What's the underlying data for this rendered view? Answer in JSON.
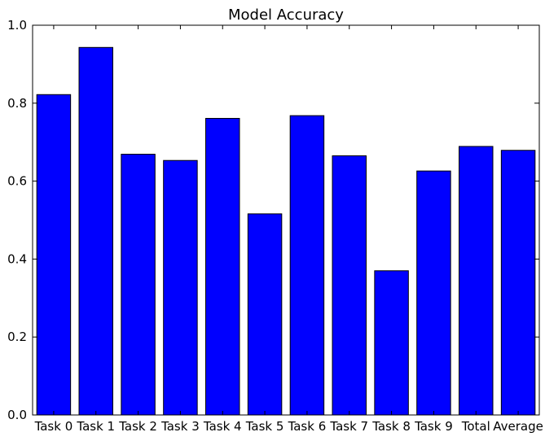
{
  "chart_data": {
    "type": "bar",
    "title": "Model Accuracy",
    "xlabel": "",
    "ylabel": "",
    "categories": [
      "Task 0",
      "Task 1",
      "Task 2",
      "Task 3",
      "Task 4",
      "Task 5",
      "Task 6",
      "Task 7",
      "Task 8",
      "Task 9",
      "Total",
      "Average"
    ],
    "values": [
      0.822,
      0.943,
      0.669,
      0.653,
      0.761,
      0.516,
      0.768,
      0.665,
      0.37,
      0.626,
      0.689,
      0.679
    ],
    "ylim": [
      0,
      1.0
    ],
    "yticks": [
      "0.0",
      "0.2",
      "0.4",
      "0.6",
      "0.8",
      "1.0"
    ],
    "grid": false,
    "legend": "none",
    "colors": {
      "bar_fill": "#0000ff",
      "bar_edge": "#000000",
      "axes": "#000000"
    }
  }
}
